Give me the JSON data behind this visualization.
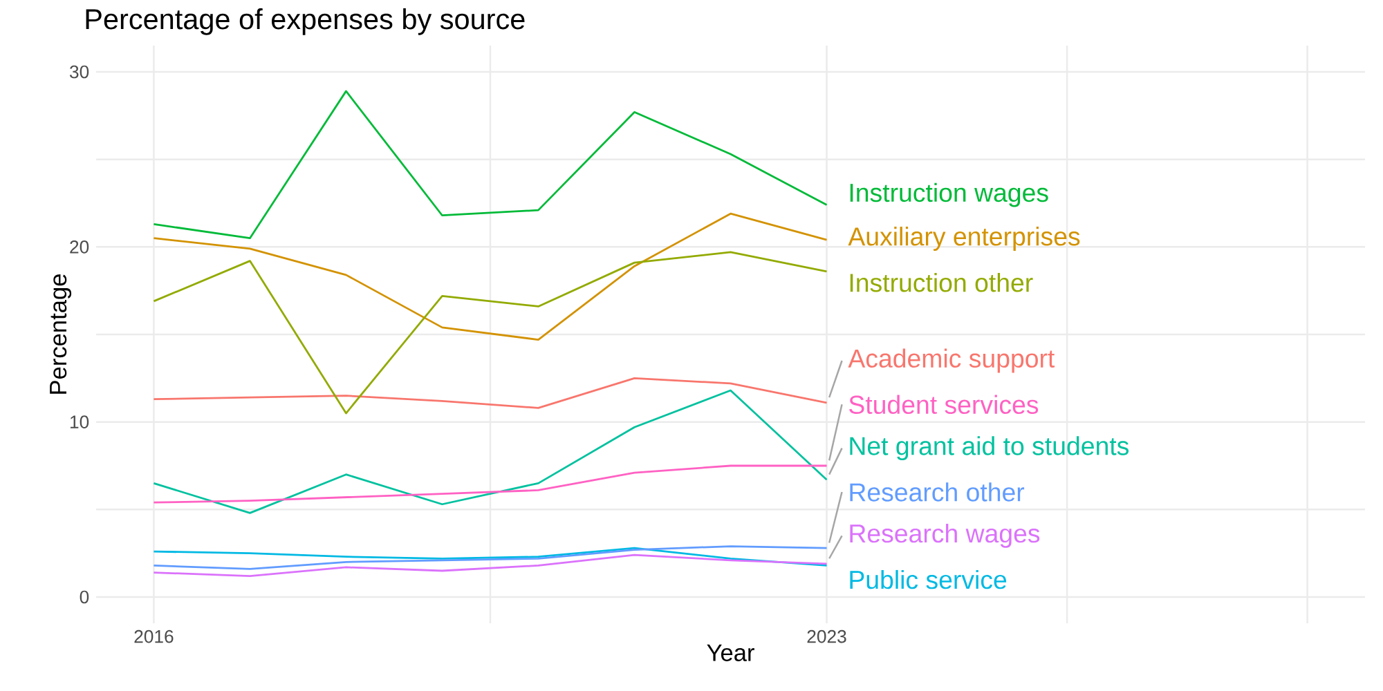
{
  "chart_data": {
    "type": "line",
    "title": "Percentage of expenses by source",
    "xlabel": "Year",
    "ylabel": "Percentage",
    "x": [
      2016,
      2017,
      2018,
      2019,
      2020,
      2021,
      2022,
      2023
    ],
    "xlim": [
      2015.4,
      2028.6
    ],
    "xticks": [
      2016,
      {
        "value": 2019.5,
        "label": null
      },
      2023,
      {
        "value": 2025.5,
        "label": null
      },
      {
        "value": 2028,
        "label": null
      }
    ],
    "ylim": [
      -1.5,
      31.5
    ],
    "yticks": [
      0,
      {
        "value": 5,
        "label": null
      },
      10,
      {
        "value": 15,
        "label": null
      },
      20,
      {
        "value": 25,
        "label": null
      },
      30
    ],
    "grid": true,
    "legend": false,
    "marker": "none",
    "line_style": "solid",
    "series": [
      {
        "name": "Academic support",
        "color": "#f8766d",
        "values": [
          11.3,
          11.4,
          11.5,
          11.2,
          10.8,
          12.5,
          12.2,
          11.1
        ]
      },
      {
        "name": "Auxiliary enterprises",
        "color": "#d39200",
        "values": [
          20.5,
          19.9,
          18.4,
          15.4,
          14.7,
          18.9,
          21.9,
          20.4
        ]
      },
      {
        "name": "Instruction other",
        "color": "#93aa00",
        "values": [
          16.9,
          19.2,
          10.5,
          17.2,
          16.6,
          19.1,
          19.7,
          18.6
        ]
      },
      {
        "name": "Instruction wages",
        "color": "#00ba38",
        "values": [
          21.3,
          20.5,
          28.9,
          21.8,
          22.1,
          27.7,
          25.3,
          22.4
        ]
      },
      {
        "name": "Net grant aid to students",
        "color": "#00c19f",
        "values": [
          6.5,
          4.8,
          7.0,
          5.3,
          6.5,
          9.7,
          11.8,
          6.7
        ]
      },
      {
        "name": "Public service",
        "color": "#00b9e3",
        "values": [
          2.6,
          2.5,
          2.3,
          2.2,
          2.3,
          2.8,
          2.2,
          1.8
        ]
      },
      {
        "name": "Research other",
        "color": "#619cff",
        "values": [
          1.8,
          1.6,
          2.0,
          2.1,
          2.2,
          2.7,
          2.9,
          2.8
        ]
      },
      {
        "name": "Research wages",
        "color": "#db72fb",
        "values": [
          1.4,
          1.2,
          1.7,
          1.5,
          1.8,
          2.4,
          2.1,
          1.9
        ]
      },
      {
        "name": "Student services",
        "color": "#ff61c3",
        "values": [
          5.4,
          5.5,
          5.7,
          5.9,
          6.1,
          7.1,
          7.5,
          7.5
        ]
      }
    ]
  }
}
